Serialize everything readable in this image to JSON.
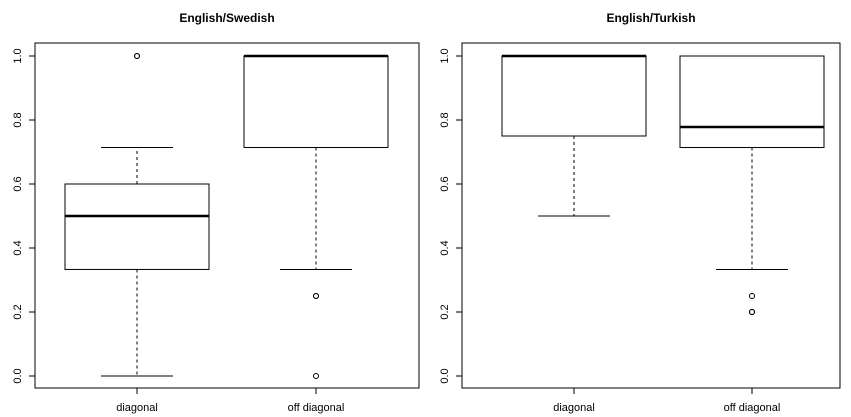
{
  "chart_data": [
    {
      "type": "boxplot",
      "title": "English/Swedish",
      "xlabel": "",
      "ylabel": "",
      "ylim": [
        0,
        1
      ],
      "yticks": [
        "0.0",
        "0.2",
        "0.4",
        "0.6",
        "0.8",
        "1.0"
      ],
      "categories": [
        "diagonal",
        "off diagonal"
      ],
      "boxes": [
        {
          "category": "diagonal",
          "whisker_low": 0.0,
          "q1": 0.333,
          "median": 0.5,
          "q3": 0.6,
          "whisker_high": 0.714,
          "outliers": [
            1.0,
            1.0
          ]
        },
        {
          "category": "off diagonal",
          "whisker_low": 0.333,
          "q1": 0.714,
          "median": 1.0,
          "q3": 1.0,
          "whisker_high": 1.0,
          "outliers": [
            0.25,
            0.25,
            0.0
          ]
        }
      ]
    },
    {
      "type": "boxplot",
      "title": "English/Turkish",
      "xlabel": "",
      "ylabel": "",
      "ylim": [
        0,
        1
      ],
      "yticks": [
        "0.0",
        "0.2",
        "0.4",
        "0.6",
        "0.8",
        "1.0"
      ],
      "categories": [
        "diagonal",
        "off diagonal"
      ],
      "boxes": [
        {
          "category": "diagonal",
          "whisker_low": 0.5,
          "q1": 0.75,
          "median": 1.0,
          "q3": 1.0,
          "whisker_high": 1.0,
          "outliers": []
        },
        {
          "category": "off diagonal",
          "whisker_low": 0.333,
          "q1": 0.714,
          "median": 0.778,
          "q3": 1.0,
          "whisker_high": 1.0,
          "outliers": [
            0.25,
            0.2,
            0.2
          ]
        }
      ]
    }
  ]
}
